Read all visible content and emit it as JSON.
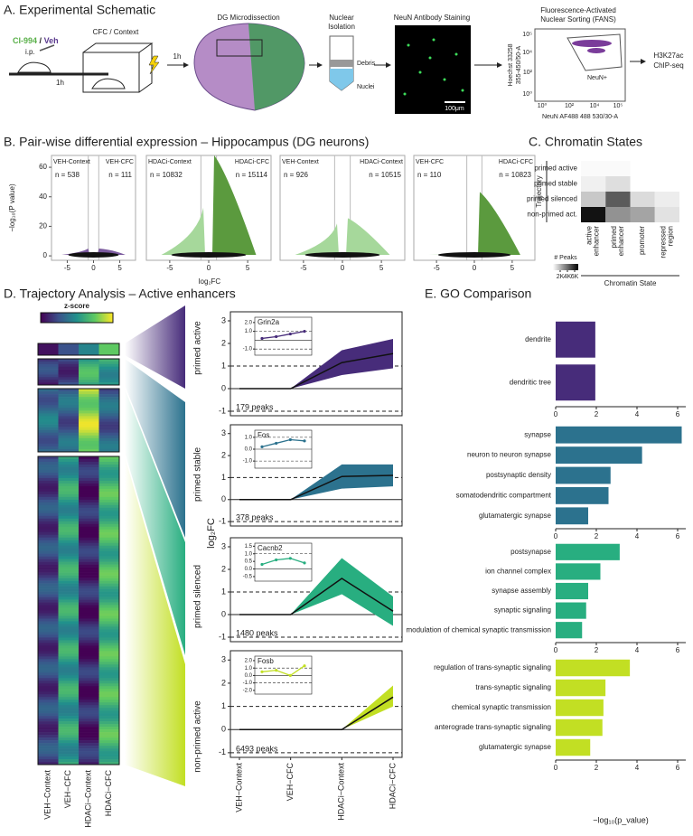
{
  "schematic": {
    "title": "A. Experimental Schematic",
    "drug": "CI-994",
    "slash": "/",
    "vehicle": "Veh",
    "route": "i.p.",
    "delay_1": "1h",
    "behavior": "CFC / Context",
    "delay_2": "1h",
    "dissection": "DG Microdissection",
    "isolation": [
      "Nuclear",
      "Isolation"
    ],
    "debris": "Debris",
    "nuclei": "Nuclei",
    "staining": "NeuN Antibody Staining",
    "scale_bar": "100μm",
    "fans_title": [
      "Fluorescence-Activated",
      "Nuclear Sorting (FANS)"
    ],
    "fans_ylabel": [
      "Hoechst 33258",
      "355-450/50-A"
    ],
    "fans_xlabel": "NeuN AF488 488 530/30-A",
    "fans_xticks": [
      "10⁰",
      "10²",
      "10⁴",
      "10⁵"
    ],
    "fans_yticks": [
      "10⁵",
      "10⁴",
      "10²",
      "10⁰"
    ],
    "gate": "NeuN+",
    "output": [
      "H3K27ac",
      "ChIP-seq"
    ]
  },
  "panel_titles": {
    "b": "B. Pair-wise differential expression – Hippocampus (DG neurons)",
    "c": "C. Chromatin States",
    "d": "D. Trajectory Analysis – Active enhancers",
    "e": "E. GO Comparison"
  },
  "chart_data": [
    {
      "type": "volcano",
      "left_label": "VEH-Context",
      "right_label": "VEH-CFC",
      "left_n": "n = 538",
      "right_n": "n = 111",
      "xlim": [
        -8,
        8
      ],
      "ylim": [
        -3,
        68
      ],
      "xticks": [
        -5,
        0,
        5
      ],
      "yticks": [
        0,
        20,
        40,
        60
      ],
      "vlines": [
        -1,
        1
      ],
      "ylabel": "−log₁₀(P value)",
      "colors": [
        "#7b5a9e",
        "#7b5a9e"
      ]
    },
    {
      "type": "volcano",
      "left_label": "HDACi-Context",
      "right_label": "HDACi-CFC",
      "left_n": "n = 10832",
      "right_n": "n = 15114",
      "xlim": [
        -8,
        8
      ],
      "ylim": [
        -3,
        68
      ],
      "xticks": [
        -5,
        0,
        5
      ],
      "vlines": [
        -1,
        1
      ],
      "xlabel": "log₂FC",
      "colors": [
        "#a6d89b",
        "#5b9a3e"
      ]
    },
    {
      "type": "volcano",
      "left_label": "VEH-Context",
      "right_label": "HDACi-Context",
      "left_n": "n = 926",
      "right_n": "n = 10515",
      "xlim": [
        -8,
        8
      ],
      "ylim": [
        -3,
        68
      ],
      "xticks": [
        -5,
        0,
        5
      ],
      "vlines": [
        -1,
        1
      ],
      "colors": [
        "#a6d89b",
        "#a6d89b"
      ]
    },
    {
      "type": "volcano",
      "left_label": "VEH-CFC",
      "right_label": "HDACi-CFC",
      "left_n": "n = 110",
      "right_n": "n = 10823",
      "xlim": [
        -8,
        8
      ],
      "ylim": [
        -3,
        68
      ],
      "xticks": [
        -5,
        0,
        5
      ],
      "vlines": [
        -1,
        1
      ],
      "colors": [
        "#a6d89b",
        "#5b9a3e"
      ]
    },
    {
      "type": "heatmap",
      "rows": [
        "primed active",
        "primed stable",
        "primed silenced",
        "non-primed act."
      ],
      "columns": [
        [
          "active",
          "enhancer"
        ],
        [
          "primed",
          "enhancer"
        ],
        [
          "promoter"
        ],
        [
          "repressed",
          "region"
        ]
      ],
      "values": [
        [
          150,
          150,
          0,
          0
        ],
        [
          400,
          900,
          0,
          0
        ],
        [
          1500,
          4500,
          1000,
          500
        ],
        [
          6500,
          3000,
          2500,
          800
        ]
      ],
      "clim": [
        0,
        7000
      ],
      "colorbar_label": "# Peaks",
      "colorbar_ticks": [
        {
          "value": 2000,
          "label": "2K"
        },
        {
          "value": 4000,
          "label": "4K"
        },
        {
          "value": 6000,
          "label": "6K"
        }
      ],
      "ylabel": "Trajectory",
      "xlabel": "Chromatin State"
    },
    {
      "type": "zscore-heatmap",
      "colorbar_label": "z-score",
      "categories": [
        "VEH−Context",
        "VEH−CFC",
        "HDACi−Context",
        "HDACi−CFC"
      ],
      "groups": [
        "primed active",
        "primed stable",
        "primed silenced",
        "non-primed active"
      ],
      "colors": [
        "#472c7a",
        "#2c728e",
        "#28ae80",
        "#c2df23"
      ]
    },
    {
      "type": "line",
      "values": [
        0,
        0,
        1.15,
        1.55
      ],
      "lower": [
        0,
        0,
        0.6,
        0.9
      ],
      "upper": [
        0,
        0,
        1.7,
        2.2
      ],
      "color": "#472c7a",
      "ylim": [
        -1.2,
        3.4
      ],
      "yticks": [
        -1,
        0,
        1,
        2,
        3
      ],
      "dashed_lines": [
        -1,
        1
      ],
      "solid_lines": [
        0
      ],
      "note": "179 peaks",
      "ylabel": "log₂FC",
      "inset": {
        "label": "Grin2a",
        "ylim": [
          -1.7,
          2.6
        ],
        "yticks": [
          {
            "value": 2,
            "label": "2.0"
          },
          {
            "value": 1,
            "label": "1.0"
          },
          {
            "value": -1,
            "label": "-1.0"
          }
        ],
        "values": [
          0.2,
          0.4,
          0.7,
          1.0
        ],
        "dashed_lines": [
          1,
          -1
        ],
        "solid_lines": [
          0
        ]
      }
    },
    {
      "type": "line",
      "values": [
        0,
        0,
        1.05,
        1.1
      ],
      "lower": [
        0,
        0,
        0.5,
        0.6
      ],
      "upper": [
        0,
        0,
        1.6,
        1.6
      ],
      "color": "#2c728e",
      "ylim": [
        -1.2,
        3.4
      ],
      "yticks": [
        -1,
        0,
        1,
        2,
        3
      ],
      "dashed_lines": [
        -1,
        1
      ],
      "solid_lines": [
        0
      ],
      "note": "378 peaks",
      "inset": {
        "label": "Fos",
        "ylim": [
          -1.6,
          1.6
        ],
        "yticks": [
          {
            "value": 1,
            "label": "1.0"
          },
          {
            "value": 0,
            "label": "0.0"
          },
          {
            "value": -1,
            "label": "-1.0"
          }
        ],
        "values": [
          0.2,
          0.5,
          0.8,
          0.7
        ],
        "dashed_lines": [
          1,
          -1
        ],
        "solid_lines": [
          0
        ]
      }
    },
    {
      "type": "line",
      "values": [
        0,
        0,
        1.6,
        0.15
      ],
      "lower": [
        0,
        0,
        0.9,
        -0.5
      ],
      "upper": [
        0,
        0,
        2.5,
        0.8
      ],
      "color": "#28ae80",
      "ylim": [
        -1.2,
        3.4
      ],
      "yticks": [
        -1,
        0,
        1,
        2,
        3
      ],
      "dashed_lines": [
        -1,
        1
      ],
      "solid_lines": [
        0
      ],
      "note": "1480 peaks",
      "inset": {
        "label": "Cacnb2",
        "ylim": [
          -0.8,
          1.7
        ],
        "yticks": [
          {
            "value": 1.5,
            "label": "1.5"
          },
          {
            "value": 1,
            "label": "1.0"
          },
          {
            "value": 0.5,
            "label": "0.5"
          },
          {
            "value": 0,
            "label": "0.0"
          },
          {
            "value": -0.5,
            "label": "-0.5"
          }
        ],
        "values": [
          0.3,
          0.6,
          0.7,
          0.4
        ],
        "dashed_lines": [
          1
        ],
        "solid_lines": [
          0
        ]
      }
    },
    {
      "type": "line",
      "values": [
        0,
        0,
        0,
        1.4
      ],
      "lower": [
        0,
        0,
        0,
        1.0
      ],
      "upper": [
        0,
        0,
        0,
        1.9
      ],
      "color": "#c2df23",
      "ylim": [
        -1.2,
        3.4
      ],
      "yticks": [
        -1,
        0,
        1,
        2,
        3
      ],
      "dashed_lines": [
        -1,
        1
      ],
      "solid_lines": [
        0
      ],
      "note": "6493 peaks",
      "categories": [
        "VEH−Context",
        "VEH−CFC",
        "HDACi−Context",
        "HDACi−CFC"
      ],
      "inset": {
        "label": "Fosb",
        "ylim": [
          -2.5,
          2.6
        ],
        "yticks": [
          {
            "value": 2,
            "label": "2.0"
          },
          {
            "value": 1,
            "label": "1.0"
          },
          {
            "value": 0,
            "label": "0.0"
          },
          {
            "value": -1,
            "label": "-1.0"
          },
          {
            "value": -2,
            "label": "-2.0"
          }
        ],
        "values": [
          0.5,
          0.7,
          0.0,
          1.3
        ],
        "dashed_lines": [
          1,
          -1
        ],
        "solid_lines": [
          0
        ]
      }
    },
    {
      "type": "hbar",
      "categories": [
        "dendrite",
        "dendritic tree"
      ],
      "values": [
        1.95,
        1.95
      ],
      "color": "#472c7a",
      "xlim": [
        0,
        6.4
      ],
      "xticks": [
        0,
        2,
        4,
        6
      ]
    },
    {
      "type": "hbar",
      "categories": [
        "synapse",
        "neuron to neuron synapse",
        "postsynaptic density",
        "somatodendritic compartment",
        "glutamatergic synapse"
      ],
      "values": [
        6.2,
        4.25,
        2.7,
        2.6,
        1.6
      ],
      "color": "#2c728e",
      "xlim": [
        0,
        6.4
      ],
      "xticks": [
        0,
        2,
        4,
        6
      ]
    },
    {
      "type": "hbar",
      "categories": [
        "postsynapse",
        "ion channel complex",
        "synapse assembly",
        "synaptic signaling",
        "modulation of chemical synaptic transmission"
      ],
      "values": [
        3.15,
        2.2,
        1.6,
        1.5,
        1.3
      ],
      "color": "#28ae80",
      "xlim": [
        0,
        6.4
      ],
      "xticks": [
        0,
        2,
        4,
        6
      ]
    },
    {
      "type": "hbar",
      "categories": [
        "regulation of trans-synaptic signaling",
        "trans-synaptic signaling",
        "chemical synaptic transmission",
        "anterograde trans-synaptic signaling",
        "glutamatergic synapse"
      ],
      "values": [
        3.65,
        2.45,
        2.35,
        2.3,
        1.7
      ],
      "color": "#c2df23",
      "xlim": [
        0,
        6.4
      ],
      "xticks": [
        0,
        2,
        4,
        6
      ],
      "xlabel": "−log₁₀(p_value)"
    }
  ]
}
